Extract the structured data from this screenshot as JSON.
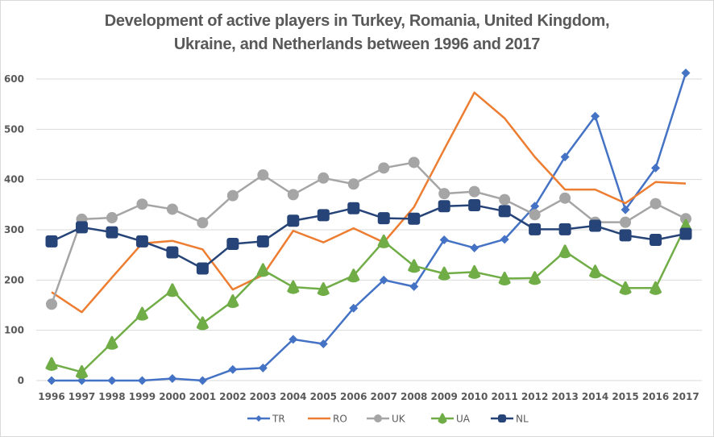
{
  "chart_data": {
    "type": "line",
    "title_lines": [
      "Development of active players in Turkey, Romania, United Kingdom,",
      "Ukraine, and Netherlands between 1996 and 2017"
    ],
    "xlabel": "",
    "ylabel": "",
    "ylim": [
      0,
      600
    ],
    "yticks": [
      "0",
      "100",
      "200",
      "300",
      "400",
      "500",
      "600"
    ],
    "ytick_values": [
      0,
      100,
      200,
      300,
      400,
      500,
      600
    ],
    "grid": true,
    "legend_position": "bottom",
    "categories": [
      "1996",
      "1997",
      "1998",
      "1999",
      "2000",
      "2001",
      "2002",
      "2003",
      "2004",
      "2005",
      "2006",
      "2007",
      "2008",
      "2009",
      "2010",
      "2011",
      "2012",
      "2013",
      "2014",
      "2015",
      "2016",
      "2017"
    ],
    "series": [
      {
        "name": "TR",
        "color": "#4472c4",
        "marker": "diamond",
        "values": [
          0,
          0,
          0,
          0,
          4,
          0,
          22,
          25,
          82,
          73,
          144,
          200,
          187,
          280,
          264,
          281,
          347,
          445,
          526,
          340,
          423,
          612
        ]
      },
      {
        "name": "RO",
        "color": "#ed7d31",
        "marker": "none",
        "values": [
          176,
          136,
          205,
          273,
          278,
          261,
          181,
          210,
          298,
          275,
          303,
          275,
          345,
          460,
          573,
          522,
          445,
          380,
          380,
          353,
          395,
          392
        ]
      },
      {
        "name": "UK",
        "color": "#a5a5a5",
        "marker": "circle",
        "values": [
          152,
          321,
          324,
          351,
          341,
          314,
          368,
          409,
          370,
          403,
          391,
          423,
          434,
          372,
          376,
          360,
          330,
          363,
          315,
          315,
          352,
          322
        ]
      },
      {
        "name": "UA",
        "color": "#70ad47",
        "marker": "triangle",
        "values": [
          33,
          17,
          75,
          133,
          180,
          114,
          158,
          220,
          186,
          182,
          209,
          277,
          228,
          213,
          216,
          203,
          204,
          257,
          217,
          184,
          184,
          308
        ]
      },
      {
        "name": "NL",
        "color": "#264478",
        "marker": "square",
        "values": [
          277,
          305,
          295,
          277,
          255,
          223,
          272,
          277,
          318,
          329,
          343,
          323,
          322,
          347,
          349,
          337,
          301,
          301,
          308,
          289,
          280,
          292
        ]
      }
    ]
  }
}
